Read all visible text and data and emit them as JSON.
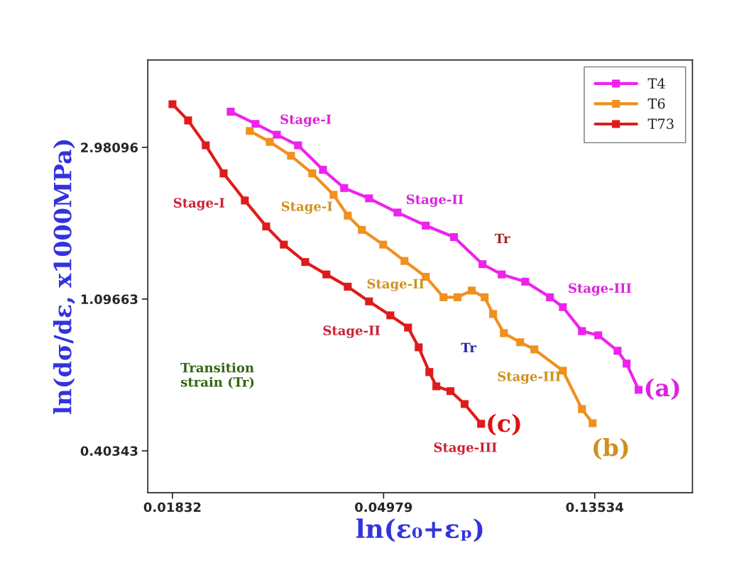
{
  "chart_data": {
    "type": "line",
    "xlabel": "ln(ε₀+εₚ)",
    "ylabel": "ln(dσ/dε, x1000MPa)",
    "log": "xy",
    "marker": "square",
    "line_style": "solid",
    "legend": "top right",
    "grid": false,
    "xlim": [
      0.0163,
      0.215
    ],
    "ylim": [
      0.306,
      5.3
    ],
    "xticks": [
      0.01832,
      0.04979,
      0.13534
    ],
    "yticks": [
      0.40343,
      1.09663,
      2.98096
    ],
    "series": [
      {
        "name": "T4",
        "color": "#ee22ee",
        "x": [
          0.02414,
          0.02715,
          0.03003,
          0.03321,
          0.03737,
          0.04131,
          0.04648,
          0.05318,
          0.06081,
          0.06951,
          0.07956,
          0.08713,
          0.09739,
          0.1095,
          0.1164,
          0.1274,
          0.1376,
          0.1508,
          0.1574,
          0.1666
        ],
        "values": [
          3.77,
          3.48,
          3.24,
          3.02,
          2.57,
          2.28,
          2.13,
          1.94,
          1.78,
          1.65,
          1.38,
          1.29,
          1.23,
          1.11,
          1.04,
          0.888,
          0.864,
          0.78,
          0.717,
          0.603
        ]
      },
      {
        "name": "T6",
        "color": "#f0901e",
        "x": [
          0.02642,
          0.02904,
          0.03212,
          0.03552,
          0.03929,
          0.04202,
          0.04493,
          0.0497,
          0.05497,
          0.06081,
          0.06613,
          0.07066,
          0.07561,
          0.08036,
          0.08364,
          0.08801,
          0.09508,
          0.1017,
          0.1164,
          0.1274,
          0.134
        ],
        "values": [
          3.32,
          3.09,
          2.82,
          2.51,
          2.18,
          1.9,
          1.73,
          1.57,
          1.41,
          1.27,
          1.11,
          1.11,
          1.16,
          1.11,
          0.994,
          0.876,
          0.825,
          0.787,
          0.684,
          0.531,
          0.484
        ]
      },
      {
        "name": "T73",
        "color": "#e01b1b",
        "x": [
          0.01832,
          0.01973,
          0.02145,
          0.02334,
          0.02581,
          0.02856,
          0.03105,
          0.03435,
          0.03798,
          0.04202,
          0.04648,
          0.05141,
          0.05591,
          0.0588,
          0.06184,
          0.06393,
          0.06836,
          0.07309,
          0.07902
        ],
        "values": [
          3.96,
          3.56,
          3.02,
          2.51,
          2.1,
          1.77,
          1.57,
          1.4,
          1.29,
          1.19,
          1.08,
          0.985,
          0.909,
          0.798,
          0.678,
          0.617,
          0.598,
          0.549,
          0.482
        ]
      }
    ],
    "annotations": [
      "Stage-I",
      "Stage-II",
      "Stage-III",
      "Tr",
      "Stage-I",
      "Stage-I",
      "Stage-II",
      "Stage-II",
      "Tr",
      "Transition\nstrain (Tr)",
      "Stage-III",
      "Stage-III",
      "(a)",
      "(b)",
      "(c)"
    ]
  }
}
